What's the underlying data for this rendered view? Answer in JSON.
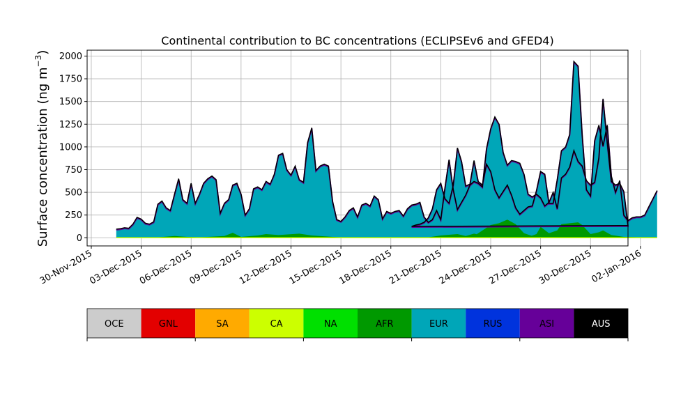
{
  "chart_data": {
    "type": "area",
    "title": "Continental contribution to BC concentrations (ECLIPSEv6 and GFED4)",
    "ylabel_text": "Surface concentration (ng m",
    "ylabel_sup": "−3",
    "ylabel_close": ")",
    "xlabel": "",
    "ylim": [
      -90,
      2065
    ],
    "xlim": [
      "2015-11-29T18:00",
      "2016-01-01T06:00"
    ],
    "y_ticks": [
      0,
      250,
      500,
      750,
      1000,
      1250,
      1500,
      1750,
      2000
    ],
    "x_ticks": [
      "2015-11-30",
      "2015-12-03",
      "2015-12-06",
      "2015-12-09",
      "2015-12-12",
      "2015-12-15",
      "2015-12-18",
      "2015-12-21",
      "2015-12-24",
      "2015-12-27",
      "2015-12-30",
      "2016-01-02"
    ],
    "x_tick_labels": [
      "30-Nov-2015",
      "03-Dec-2015",
      "06-Dec-2015",
      "09-Dec-2015",
      "12-Dec-2015",
      "15-Dec-2015",
      "18-Dec-2015",
      "21-Dec-2015",
      "24-Dec-2015",
      "27-Dec-2015",
      "30-Dec-2015",
      "02-Jan-2016"
    ],
    "grid": true,
    "stack_order": [
      "OCE",
      "GNL",
      "SA",
      "CA",
      "NA",
      "AFR",
      "EUR",
      "RUS",
      "ASI",
      "AUS"
    ],
    "colors": {
      "OCE": "#cccccc",
      "GNL": "#e30000",
      "SA": "#ffaa00",
      "CA": "#ccff00",
      "NA": "#00e000",
      "AFR": "#009900",
      "EUR": "#00a6b8",
      "RUS": "#0033dd",
      "ASI": "#660099",
      "AUS": "#000000"
    },
    "total": [
      [
        "2015-12-01T12:00",
        95
      ],
      [
        "2015-12-01T18:00",
        100
      ],
      [
        "2015-12-02T00:00",
        110
      ],
      [
        "2015-12-02T06:00",
        105
      ],
      [
        "2015-12-02T12:00",
        150
      ],
      [
        "2015-12-02T18:00",
        225
      ],
      [
        "2015-12-03T00:00",
        205
      ],
      [
        "2015-12-03T06:00",
        160
      ],
      [
        "2015-12-03T12:00",
        150
      ],
      [
        "2015-12-03T18:00",
        175
      ],
      [
        "2015-12-04T00:00",
        370
      ],
      [
        "2015-12-04T06:00",
        405
      ],
      [
        "2015-12-04T12:00",
        330
      ],
      [
        "2015-12-04T18:00",
        300
      ],
      [
        "2015-12-05T00:00",
        480
      ],
      [
        "2015-12-05T06:00",
        650
      ],
      [
        "2015-12-05T12:00",
        420
      ],
      [
        "2015-12-05T18:00",
        380
      ],
      [
        "2015-12-06T00:00",
        600
      ],
      [
        "2015-12-06T06:00",
        380
      ],
      [
        "2015-12-06T12:00",
        480
      ],
      [
        "2015-12-06T18:00",
        600
      ],
      [
        "2015-12-07T00:00",
        650
      ],
      [
        "2015-12-07T06:00",
        680
      ],
      [
        "2015-12-07T12:00",
        640
      ],
      [
        "2015-12-07T18:00",
        270
      ],
      [
        "2015-12-08T00:00",
        380
      ],
      [
        "2015-12-08T06:00",
        420
      ],
      [
        "2015-12-08T12:00",
        580
      ],
      [
        "2015-12-08T18:00",
        600
      ],
      [
        "2015-12-09T00:00",
        480
      ],
      [
        "2015-12-09T06:00",
        250
      ],
      [
        "2015-12-09T12:00",
        320
      ],
      [
        "2015-12-09T18:00",
        540
      ],
      [
        "2015-12-10T00:00",
        560
      ],
      [
        "2015-12-10T06:00",
        530
      ],
      [
        "2015-12-10T12:00",
        620
      ],
      [
        "2015-12-10T18:00",
        590
      ],
      [
        "2015-12-11T00:00",
        700
      ],
      [
        "2015-12-11T06:00",
        910
      ],
      [
        "2015-12-11T12:00",
        930
      ],
      [
        "2015-12-11T18:00",
        750
      ],
      [
        "2015-12-12T00:00",
        690
      ],
      [
        "2015-12-12T06:00",
        790
      ],
      [
        "2015-12-12T12:00",
        640
      ],
      [
        "2015-12-12T18:00",
        610
      ],
      [
        "2015-12-13T00:00",
        1050
      ],
      [
        "2015-12-13T06:00",
        1210
      ],
      [
        "2015-12-13T12:00",
        740
      ],
      [
        "2015-12-13T18:00",
        790
      ],
      [
        "2015-12-14T00:00",
        810
      ],
      [
        "2015-12-14T06:00",
        790
      ],
      [
        "2015-12-14T12:00",
        400
      ],
      [
        "2015-12-14T18:00",
        200
      ],
      [
        "2015-12-15T00:00",
        180
      ],
      [
        "2015-12-15T06:00",
        230
      ],
      [
        "2015-12-15T12:00",
        300
      ],
      [
        "2015-12-15T18:00",
        330
      ],
      [
        "2015-12-16T00:00",
        230
      ],
      [
        "2015-12-16T06:00",
        360
      ],
      [
        "2015-12-16T12:00",
        380
      ],
      [
        "2015-12-16T18:00",
        350
      ],
      [
        "2015-12-17T00:00",
        460
      ],
      [
        "2015-12-17T06:00",
        420
      ],
      [
        "2015-12-17T12:00",
        210
      ],
      [
        "2015-12-17T18:00",
        290
      ],
      [
        "2015-12-18T00:00",
        270
      ],
      [
        "2015-12-18T06:00",
        290
      ],
      [
        "2015-12-18T12:00",
        300
      ],
      [
        "2015-12-18T18:00",
        240
      ],
      [
        "2015-12-19T00:00",
        320
      ],
      [
        "2015-12-19T06:00",
        360
      ],
      [
        "2015-12-19T12:00",
        370
      ],
      [
        "2015-12-19T18:00",
        390
      ],
      [
        "2015-12-20T00:00",
        230
      ],
      [
        "2015-12-20T06:00",
        170
      ],
      [
        "2015-12-20T12:00",
        200
      ],
      [
        "2015-12-20T18:00",
        300
      ],
      [
        "2015-12-21T00:00",
        200
      ],
      [
        "2015-12-21T06:00",
        550
      ],
      [
        "2015-12-21T12:00",
        860
      ],
      [
        "2015-12-21T18:00",
        530
      ],
      [
        "2015-12-22T00:00",
        310
      ],
      [
        "2015-12-22T06:00",
        390
      ],
      [
        "2015-12-22T12:00",
        470
      ],
      [
        "2015-12-22T18:00",
        580
      ],
      [
        "2015-12-23T00:00",
        620
      ],
      [
        "2015-12-23T06:00",
        600
      ],
      [
        "2015-12-23T12:00",
        560
      ],
      [
        "2015-12-23T18:00",
        980
      ],
      [
        "2015-12-24T00:00",
        1200
      ],
      [
        "2015-12-24T06:00",
        1330
      ],
      [
        "2015-12-24T12:00",
        1250
      ],
      [
        "2015-12-24T18:00",
        940
      ],
      [
        "2015-12-25T00:00",
        800
      ],
      [
        "2015-12-25T06:00",
        850
      ],
      [
        "2015-12-25T12:00",
        840
      ],
      [
        "2015-12-25T18:00",
        820
      ],
      [
        "2015-12-26T00:00",
        700
      ],
      [
        "2015-12-26T06:00",
        480
      ],
      [
        "2015-12-26T12:00",
        450
      ],
      [
        "2015-12-26T18:00",
        480
      ],
      [
        "2015-12-27T00:00",
        440
      ],
      [
        "2015-12-27T06:00",
        350
      ],
      [
        "2015-12-27T12:00",
        390
      ],
      [
        "2015-12-27T18:00",
        500
      ],
      [
        "2015-12-28T00:00",
        320
      ],
      [
        "2015-12-28T06:00",
        660
      ],
      [
        "2015-12-28T12:00",
        700
      ],
      [
        "2015-12-28T18:00",
        780
      ],
      [
        "2015-12-29T00:00",
        960
      ],
      [
        "2015-12-29T06:00",
        840
      ],
      [
        "2015-12-29T12:00",
        790
      ],
      [
        "2015-12-29T18:00",
        630
      ],
      [
        "2015-12-30T00:00",
        580
      ],
      [
        "2015-12-30T06:00",
        610
      ],
      [
        "2015-12-30T12:00",
        880
      ],
      [
        "2015-12-30T18:00",
        1530
      ],
      [
        "2015-12-31T00:00",
        1050
      ],
      [
        "2015-12-31T06:00",
        620
      ],
      [
        "2015-12-31T12:00",
        580
      ],
      [
        "2015-12-31T18:00",
        600
      ],
      [
        "2016-01-01T00:00",
        510
      ],
      [
        "2016-01-01T06:00",
        135
      ]
    ],
    "afr": [
      [
        "2015-12-01T12:00",
        0
      ],
      [
        "2015-12-04T00:00",
        5
      ],
      [
        "2015-12-05T00:00",
        20
      ],
      [
        "2015-12-05T18:00",
        10
      ],
      [
        "2015-12-06T12:00",
        5
      ],
      [
        "2015-12-08T00:00",
        20
      ],
      [
        "2015-12-08T12:00",
        55
      ],
      [
        "2015-12-09T00:00",
        10
      ],
      [
        "2015-12-10T00:00",
        25
      ],
      [
        "2015-12-10T12:00",
        40
      ],
      [
        "2015-12-11T06:00",
        30
      ],
      [
        "2015-12-12T12:00",
        45
      ],
      [
        "2015-12-13T06:00",
        25
      ],
      [
        "2015-12-14T12:00",
        10
      ],
      [
        "2015-12-15T00:00",
        5
      ],
      [
        "2015-12-18T00:00",
        5
      ],
      [
        "2015-12-22T00:00",
        5
      ],
      [
        "2015-12-23T00:00",
        20
      ],
      [
        "2015-12-24T00:00",
        140
      ],
      [
        "2015-12-24T12:00",
        160
      ],
      [
        "2015-12-25T00:00",
        200
      ],
      [
        "2015-12-25T12:00",
        150
      ],
      [
        "2015-12-26T00:00",
        50
      ],
      [
        "2015-12-26T12:00",
        20
      ],
      [
        "2015-12-27T12:00",
        20
      ],
      [
        "2015-12-28T00:00",
        45
      ],
      [
        "2015-12-29T00:00",
        35
      ],
      [
        "2015-12-30T00:00",
        25
      ],
      [
        "2016-01-01T06:00",
        5
      ]
    ],
    "total_2": [
      [
        "2016-01-01T06:00",
        135
      ],
      [
        "2016-01-01T12:00",
        125
      ],
      [
        "2016-01-01T18:00",
        140
      ],
      [
        "2016-01-02T00:00",
        150
      ],
      [
        "2016-01-02T06:00",
        170
      ],
      [
        "2016-01-02T12:00",
        220
      ],
      [
        "2016-01-02T18:00",
        320
      ],
      [
        "2016-01-03T00:00",
        530
      ],
      [
        "2016-01-03T06:00",
        600
      ],
      [
        "2016-01-03T12:00",
        430
      ],
      [
        "2016-01-03T18:00",
        380
      ],
      [
        "2016-01-04T00:00",
        580
      ],
      [
        "2016-01-04T06:00",
        990
      ],
      [
        "2016-01-04T12:00",
        840
      ],
      [
        "2016-01-04T18:00",
        570
      ],
      [
        "2016-01-05T00:00",
        590
      ],
      [
        "2016-01-05T06:00",
        850
      ],
      [
        "2016-01-05T12:00",
        620
      ],
      [
        "2016-01-05T18:00",
        580
      ],
      [
        "2016-01-06T00:00",
        810
      ],
      [
        "2016-01-06T06:00",
        730
      ],
      [
        "2016-01-06T12:00",
        530
      ],
      [
        "2016-01-06T18:00",
        440
      ],
      [
        "2016-01-07T00:00",
        510
      ],
      [
        "2016-01-07T06:00",
        580
      ],
      [
        "2016-01-07T12:00",
        470
      ],
      [
        "2016-01-07T18:00",
        330
      ],
      [
        "2016-01-08T00:00",
        260
      ],
      [
        "2016-01-08T06:00",
        300
      ],
      [
        "2016-01-08T12:00",
        340
      ],
      [
        "2016-01-08T18:00",
        350
      ],
      [
        "2016-01-09T00:00",
        520
      ],
      [
        "2016-01-09T06:00",
        730
      ],
      [
        "2016-01-09T12:00",
        700
      ],
      [
        "2016-01-09T18:00",
        380
      ],
      [
        "2016-01-10T00:00",
        380
      ],
      [
        "2016-01-10T06:00",
        640
      ],
      [
        "2016-01-10T12:00",
        960
      ],
      [
        "2016-01-10T18:00",
        1000
      ],
      [
        "2016-01-11T00:00",
        1140
      ],
      [
        "2016-01-11T06:00",
        1940
      ],
      [
        "2016-01-11T12:00",
        1890
      ],
      [
        "2016-01-11T18:00",
        1130
      ],
      [
        "2016-01-12T00:00",
        530
      ],
      [
        "2016-01-12T06:00",
        460
      ],
      [
        "2016-01-12T12:00",
        1070
      ],
      [
        "2016-01-12T18:00",
        1240
      ],
      [
        "2016-01-13T00:00",
        1010
      ],
      [
        "2016-01-13T06:00",
        1240
      ],
      [
        "2016-01-13T12:00",
        680
      ],
      [
        "2016-01-13T18:00",
        500
      ],
      [
        "2016-01-14T00:00",
        630
      ],
      [
        "2016-01-14T06:00",
        250
      ],
      [
        "2016-01-14T12:00",
        190
      ],
      [
        "2016-01-14T18:00",
        220
      ],
      [
        "2016-01-15T00:00",
        230
      ],
      [
        "2016-01-15T06:00",
        230
      ],
      [
        "2016-01-15T12:00",
        250
      ],
      [
        "2016-01-15T18:00",
        340
      ],
      [
        "2016-01-16T00:00",
        430
      ],
      [
        "2016-01-16T06:00",
        520
      ]
    ],
    "afr_2": [
      [
        "2016-01-01T06:00",
        5
      ],
      [
        "2016-01-02T12:00",
        5
      ],
      [
        "2016-01-03T06:00",
        25
      ],
      [
        "2016-01-04T06:00",
        40
      ],
      [
        "2016-01-04T18:00",
        20
      ],
      [
        "2016-01-05T06:00",
        45
      ],
      [
        "2016-01-05T18:00",
        25
      ],
      [
        "2016-01-06T06:00",
        60
      ],
      [
        "2016-01-06T12:00",
        70
      ],
      [
        "2016-01-07T00:00",
        30
      ],
      [
        "2016-01-07T12:00",
        20
      ],
      [
        "2016-01-08T12:00",
        10
      ],
      [
        "2016-01-09T00:00",
        40
      ],
      [
        "2016-01-09T06:00",
        120
      ],
      [
        "2016-01-09T18:00",
        50
      ],
      [
        "2016-01-10T06:00",
        80
      ],
      [
        "2016-01-10T12:00",
        150
      ],
      [
        "2016-01-11T00:00",
        160
      ],
      [
        "2016-01-11T12:00",
        170
      ],
      [
        "2016-01-11T18:00",
        140
      ],
      [
        "2016-01-12T06:00",
        40
      ],
      [
        "2016-01-12T18:00",
        60
      ],
      [
        "2016-01-13T00:00",
        80
      ],
      [
        "2016-01-13T12:00",
        30
      ],
      [
        "2016-01-14T06:00",
        10
      ],
      [
        "2016-01-16T06:00",
        0
      ]
    ]
  },
  "legend_bar": {
    "labels": [
      "OCE",
      "GNL",
      "SA",
      "CA",
      "NA",
      "AFR",
      "EUR",
      "RUS",
      "ASI",
      "AUS"
    ]
  }
}
